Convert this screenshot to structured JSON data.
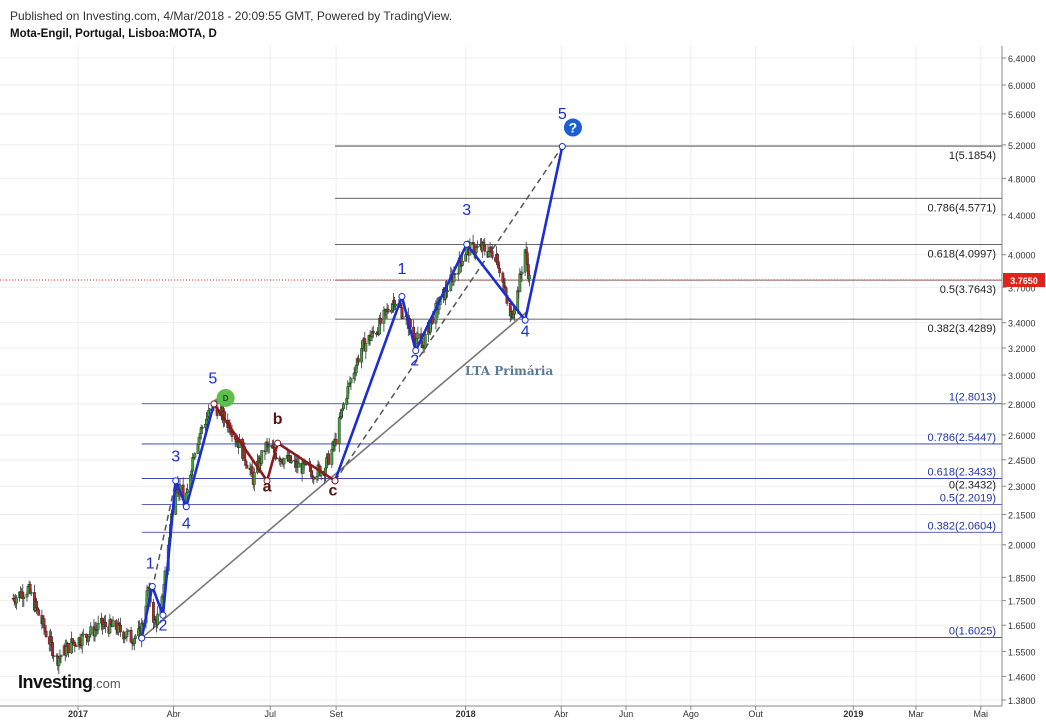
{
  "header": {
    "published": "Published on Investing.com, 4/Mar/2018 - 20:09:55 GMT, Powered by TradingView.",
    "symbol": "Mota-Engil, Portugal, Lisboa:MOTA, D"
  },
  "logo": {
    "main": "Investing",
    "suffix": ".com"
  },
  "chart_data": {
    "type": "candlestick",
    "title": "Mota-Engil, Portugal, Lisboa:MOTA, D",
    "ylim": [
      1.38,
      6.5
    ],
    "y_scale": "log",
    "y_ticks": [
      "6.4000",
      "6.0000",
      "5.6000",
      "5.2000",
      "4.8000",
      "4.4000",
      "4.0000",
      "3.7000",
      "3.4000",
      "3.2000",
      "3.0000",
      "2.8000",
      "2.6000",
      "2.4500",
      "2.3000",
      "2.1500",
      "2.0000",
      "1.8500",
      "1.7500",
      "1.6500",
      "1.5500",
      "1.4600",
      "1.3800"
    ],
    "x_ticks": [
      "2017",
      "Abr",
      "Jul",
      "Set",
      "2018",
      "Abr",
      "Jun",
      "Ago",
      "Out",
      "2019",
      "Mar",
      "Mai"
    ],
    "x_tick_dates": [
      "2017-01-01",
      "2017-04-01",
      "2017-07-01",
      "2017-09-01",
      "2018-01-01",
      "2018-04-01",
      "2018-06-01",
      "2018-08-01",
      "2018-10-01",
      "2019-01-01",
      "2019-03-01",
      "2019-05-01"
    ],
    "current_price": {
      "label": "3.7650",
      "value": 3.765,
      "color": "#e0231b"
    },
    "price_path": [
      [
        "2016-11-01",
        1.76
      ],
      [
        "2016-11-15",
        1.8
      ],
      [
        "2016-11-28",
        1.66
      ],
      [
        "2016-12-12",
        1.52
      ],
      [
        "2016-12-26",
        1.58
      ],
      [
        "2017-01-09",
        1.61
      ],
      [
        "2017-01-23",
        1.65
      ],
      [
        "2017-02-06",
        1.64
      ],
      [
        "2017-02-20",
        1.6
      ],
      [
        "2017-03-01",
        1.62
      ],
      [
        "2017-03-08",
        1.8
      ],
      [
        "2017-03-14",
        1.66
      ],
      [
        "2017-03-20",
        1.7
      ],
      [
        "2017-03-27",
        2.0
      ],
      [
        "2017-04-03",
        2.33
      ],
      [
        "2017-04-12",
        2.19
      ],
      [
        "2017-04-20",
        2.5
      ],
      [
        "2017-04-28",
        2.65
      ],
      [
        "2017-05-09",
        2.8
      ],
      [
        "2017-05-17",
        2.72
      ],
      [
        "2017-05-25",
        2.65
      ],
      [
        "2017-06-05",
        2.5
      ],
      [
        "2017-06-15",
        2.34
      ],
      [
        "2017-06-27",
        2.53
      ],
      [
        "2017-07-10",
        2.47
      ],
      [
        "2017-07-25",
        2.42
      ],
      [
        "2017-08-11",
        2.38
      ],
      [
        "2017-08-21",
        2.4
      ],
      [
        "2017-08-31",
        2.55
      ],
      [
        "2017-09-10",
        2.85
      ],
      [
        "2017-09-25",
        3.2
      ],
      [
        "2017-10-10",
        3.35
      ],
      [
        "2017-10-26",
        3.6
      ],
      [
        "2017-11-08",
        3.4
      ],
      [
        "2017-11-21",
        3.2
      ],
      [
        "2017-12-01",
        3.45
      ],
      [
        "2017-12-15",
        3.7
      ],
      [
        "2018-01-02",
        4.05
      ],
      [
        "2018-01-17",
        4.06
      ],
      [
        "2018-01-30",
        4.0
      ],
      [
        "2018-02-06",
        3.7
      ],
      [
        "2018-02-12",
        3.43
      ],
      [
        "2018-02-19",
        3.65
      ],
      [
        "2018-02-26",
        4.05
      ],
      [
        "2018-03-02",
        3.77
      ]
    ],
    "elliott_labels": [
      {
        "text": "1",
        "date": "2017-03-10",
        "y": 1.89,
        "color": "#1c2ed0"
      },
      {
        "text": "2",
        "date": "2017-03-22",
        "y": 1.63,
        "color": "#1c2ed0"
      },
      {
        "text": "3",
        "date": "2017-04-03",
        "y": 2.44,
        "color": "#1c2ed0"
      },
      {
        "text": "4",
        "date": "2017-04-13",
        "y": 2.08,
        "color": "#1c2ed0"
      },
      {
        "text": "5",
        "date": "2017-05-08",
        "y": 2.94,
        "color": "#1c2ed0"
      },
      {
        "text": "a",
        "date": "2017-06-28",
        "y": 2.27,
        "color": "#5a1212"
      },
      {
        "text": "b",
        "date": "2017-07-08",
        "y": 2.67,
        "color": "#5a1212"
      },
      {
        "text": "c",
        "date": "2017-08-29",
        "y": 2.25,
        "color": "#5a1212"
      },
      {
        "text": "1",
        "date": "2017-11-02",
        "y": 3.82,
        "color": "#1c2ed0"
      },
      {
        "text": "2",
        "date": "2017-11-14",
        "y": 3.07,
        "color": "#1c2ed0"
      },
      {
        "text": "3",
        "date": "2018-01-02",
        "y": 4.4,
        "color": "#1c2ed0"
      },
      {
        "text": "4",
        "date": "2018-02-26",
        "y": 3.29,
        "color": "#1c2ed0"
      },
      {
        "text": "5",
        "date": "2018-04-02",
        "y": 5.53,
        "color": "#1c2ed0"
      }
    ],
    "impulse_waves": [
      {
        "color": "#1c2ed0",
        "points": [
          [
            "2017-03-02",
            1.6
          ],
          [
            "2017-03-12",
            1.81
          ],
          [
            "2017-03-22",
            1.69
          ],
          [
            "2017-04-03",
            2.33
          ],
          [
            "2017-04-13",
            2.19
          ],
          [
            "2017-05-09",
            2.8
          ]
        ]
      },
      {
        "color": "#1c2ed0",
        "points": [
          [
            "2017-08-31",
            2.33
          ],
          [
            "2017-11-02",
            3.62
          ],
          [
            "2017-11-15",
            3.18
          ],
          [
            "2018-01-02",
            4.1
          ],
          [
            "2018-02-26",
            3.42
          ],
          [
            "2018-04-02",
            5.18
          ]
        ]
      }
    ],
    "corrective_waves": [
      {
        "color": "#8b1a1a",
        "points": [
          [
            "2017-05-09",
            2.8
          ],
          [
            "2017-06-28",
            2.33
          ],
          [
            "2017-07-08",
            2.55
          ],
          [
            "2017-08-31",
            2.33
          ]
        ]
      }
    ],
    "trendline": {
      "label": "LTA Primária",
      "points": [
        [
          "2017-03-02",
          1.6
        ],
        [
          "2018-03-01",
          3.5
        ]
      ]
    },
    "fib_levels_2018": [
      {
        "label": "1(5.1854)",
        "value": 5.1854
      },
      {
        "label": "0.786(4.5771)",
        "value": 4.5771
      },
      {
        "label": "0.618(4.0997)",
        "value": 4.0997
      },
      {
        "label": "0.5(3.7643)",
        "value": 3.7643
      },
      {
        "label": "0.382(3.4289)",
        "value": 3.4289
      }
    ],
    "fib_levels_2017": [
      {
        "label": "1(2.8013)",
        "value": 2.8013
      },
      {
        "label": "0.786(2.5447)",
        "value": 2.5447
      },
      {
        "label": "0.618(2.3433)",
        "value": 2.3433
      },
      {
        "label": "0(2.3432)",
        "value": 2.3432
      },
      {
        "label": "0.5(2.2019)",
        "value": 2.2019
      },
      {
        "label": "0.382(2.0604)",
        "value": 2.0604
      },
      {
        "label": "0(1.6025)",
        "value": 1.6025
      }
    ],
    "markers": [
      {
        "text": "D",
        "date": "2017-05-20",
        "y": 2.84,
        "color": "#5ec04a"
      },
      {
        "text": "?",
        "date": "2018-04-12",
        "y": 5.42,
        "color": "#1a5fd6"
      }
    ]
  }
}
